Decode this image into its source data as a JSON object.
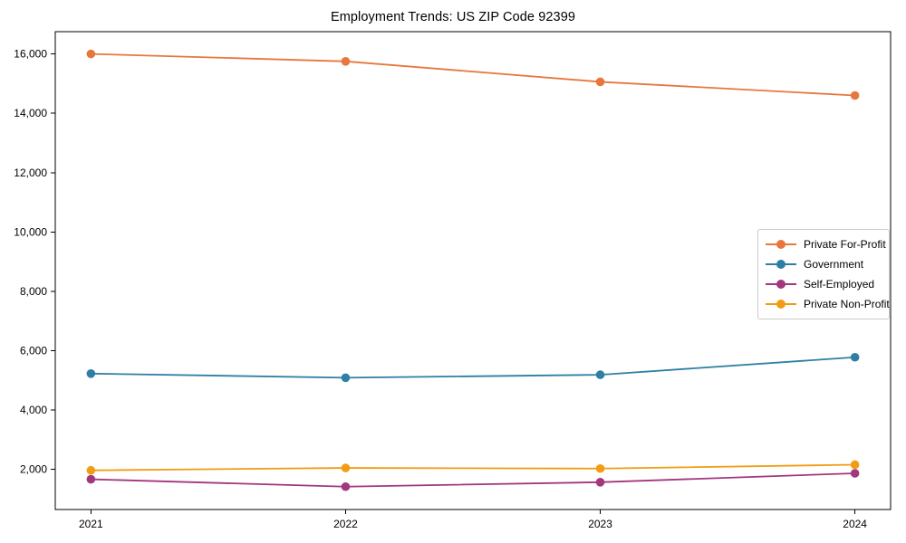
{
  "chart_data": {
    "type": "line",
    "title": "Employment Trends: US ZIP Code 92399",
    "categories": [
      2021,
      2022,
      2023,
      2024
    ],
    "series": [
      {
        "name": "Private For-Profit",
        "color": "#e8763e",
        "values": [
          16000,
          15750,
          15060,
          14600
        ]
      },
      {
        "name": "Government",
        "color": "#2e7fa3",
        "values": [
          5230,
          5090,
          5190,
          5780
        ]
      },
      {
        "name": "Self-Employed",
        "color": "#a3367d",
        "values": [
          1670,
          1420,
          1570,
          1870
        ]
      },
      {
        "name": "Private Non-Profit",
        "color": "#f29c13",
        "values": [
          1970,
          2050,
          2030,
          2160
        ]
      }
    ],
    "xlabel": "",
    "ylabel": "",
    "xlim": [
      2020.86,
      2024.14
    ],
    "ylim": [
      650,
      16750
    ],
    "yticks": [
      2000,
      4000,
      6000,
      8000,
      10000,
      12000,
      14000,
      16000
    ],
    "ytick_format": "comma",
    "xticks": [
      "2021",
      "2022",
      "2023",
      "2024"
    ],
    "grid": false,
    "marker": "circle",
    "legend": {
      "position": "center-right",
      "entries": [
        "Private For-Profit",
        "Government",
        "Self-Employed",
        "Private Non-Profit"
      ]
    },
    "frame_color": "#000000",
    "tick_label_color": "#000000"
  }
}
